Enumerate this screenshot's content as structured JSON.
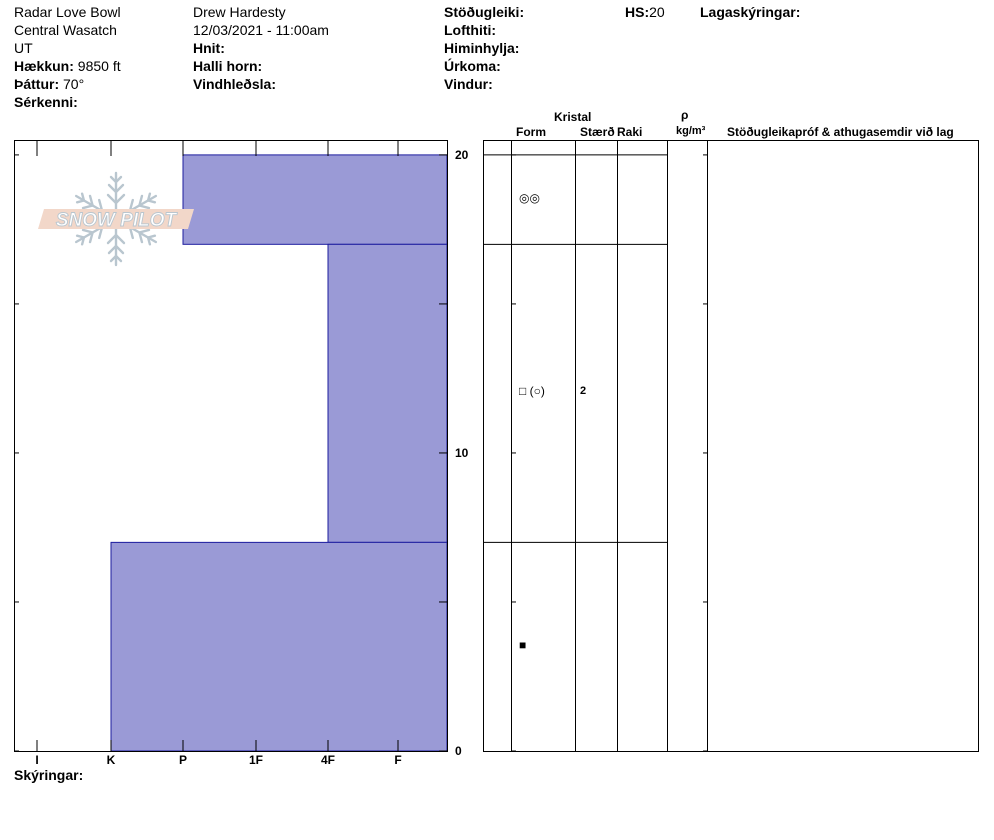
{
  "header": {
    "location": "Radar Love Bowl",
    "range": "Central Wasatch",
    "state": "UT",
    "elevation_label": "Hækkun:",
    "elevation_value": "9850 ft",
    "aspect_label": "Þáttur:",
    "aspect_value": "70°",
    "features_label": "Sérkenni:",
    "observer": "Drew Hardesty",
    "datetime": "12/03/2021 - 11:00am",
    "coords_label": "Hnit:",
    "slope_label": "Halli horn:",
    "wind_loading_label": "Vindhleðsla:",
    "stability_label": "Stöðugleiki:",
    "air_temp_label": "Lofthiti:",
    "sky_label": "Himinhylja:",
    "precip_label": "Úrkoma:",
    "wind_label": "Vindur:",
    "hs_label": "HS:",
    "hs_value": "20",
    "layer_notes_label": "Lagaskýringar:",
    "notes_label": "Skýringar:"
  },
  "logo": {
    "text": "SNOW PILOT",
    "icon": "snowflake-icon"
  },
  "columns": {
    "crystal_label": "Kristal",
    "form_label": "Form",
    "size_label": "Stærð",
    "moisture_label": "Raki",
    "rho_label": "ρ",
    "density_unit": "kg/m³",
    "comments_label": "Stöðugleikapróf & athugasemdir við lag"
  },
  "chart_data": {
    "type": "bar",
    "orientation": "horizontal-profile",
    "x_categories": [
      "I",
      "K",
      "P",
      "1F",
      "4F",
      "F"
    ],
    "y_ticks": [
      "0",
      "10",
      "20"
    ],
    "ylim": [
      0,
      20.5
    ],
    "ylabel": "",
    "xlabel": "",
    "layers": [
      {
        "top": 20,
        "bottom": 17,
        "hardness": "P",
        "form": "◎◎",
        "size": ""
      },
      {
        "top": 17,
        "bottom": 7,
        "hardness": "4F",
        "form": "□ (○)",
        "size": "2"
      },
      {
        "top": 7,
        "bottom": 0,
        "hardness": "K",
        "form": "■",
        "size": ""
      }
    ],
    "fill_color": "#9a9ad6",
    "edge_color": "#1c1c9e"
  }
}
